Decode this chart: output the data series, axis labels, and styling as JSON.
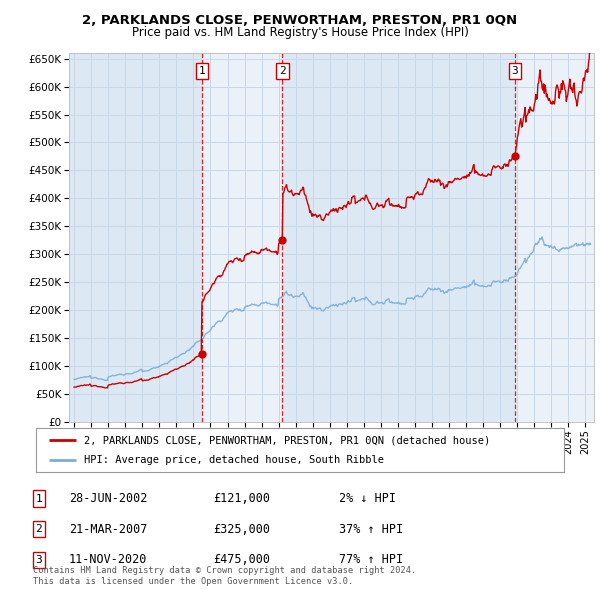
{
  "title_line1": "2, PARKLANDS CLOSE, PENWORTHAM, PRESTON, PR1 0QN",
  "title_line2": "Price paid vs. HM Land Registry's House Price Index (HPI)",
  "ylim": [
    0,
    660000
  ],
  "yticks": [
    0,
    50000,
    100000,
    150000,
    200000,
    250000,
    300000,
    350000,
    400000,
    450000,
    500000,
    550000,
    600000,
    650000
  ],
  "ytick_labels": [
    "£0",
    "£50K",
    "£100K",
    "£150K",
    "£200K",
    "£250K",
    "£300K",
    "£350K",
    "£400K",
    "£450K",
    "£500K",
    "£550K",
    "£600K",
    "£650K"
  ],
  "xlim_start": 1994.7,
  "xlim_end": 2025.5,
  "sale_dates": [
    2002.49,
    2007.22,
    2020.87
  ],
  "sale_prices": [
    121000,
    325000,
    475000
  ],
  "sale_labels": [
    "1",
    "2",
    "3"
  ],
  "hpi_color": "#7bafd4",
  "price_color": "#cc0000",
  "grid_color": "#c8d8e8",
  "bg_color_main": "#dce9f5",
  "bg_color_alt": "#eaf1f8",
  "legend_line1": "2, PARKLANDS CLOSE, PENWORTHAM, PRESTON, PR1 0QN (detached house)",
  "legend_line2": "HPI: Average price, detached house, South Ribble",
  "table_entries": [
    {
      "label": "1",
      "date": "28-JUN-2002",
      "price": "£121,000",
      "hpi": "2% ↓ HPI"
    },
    {
      "label": "2",
      "date": "21-MAR-2007",
      "price": "£325,000",
      "hpi": "37% ↑ HPI"
    },
    {
      "label": "3",
      "date": "11-NOV-2020",
      "price": "£475,000",
      "hpi": "77% ↑ HPI"
    }
  ],
  "footnote": "Contains HM Land Registry data © Crown copyright and database right 2024.\nThis data is licensed under the Open Government Licence v3.0."
}
